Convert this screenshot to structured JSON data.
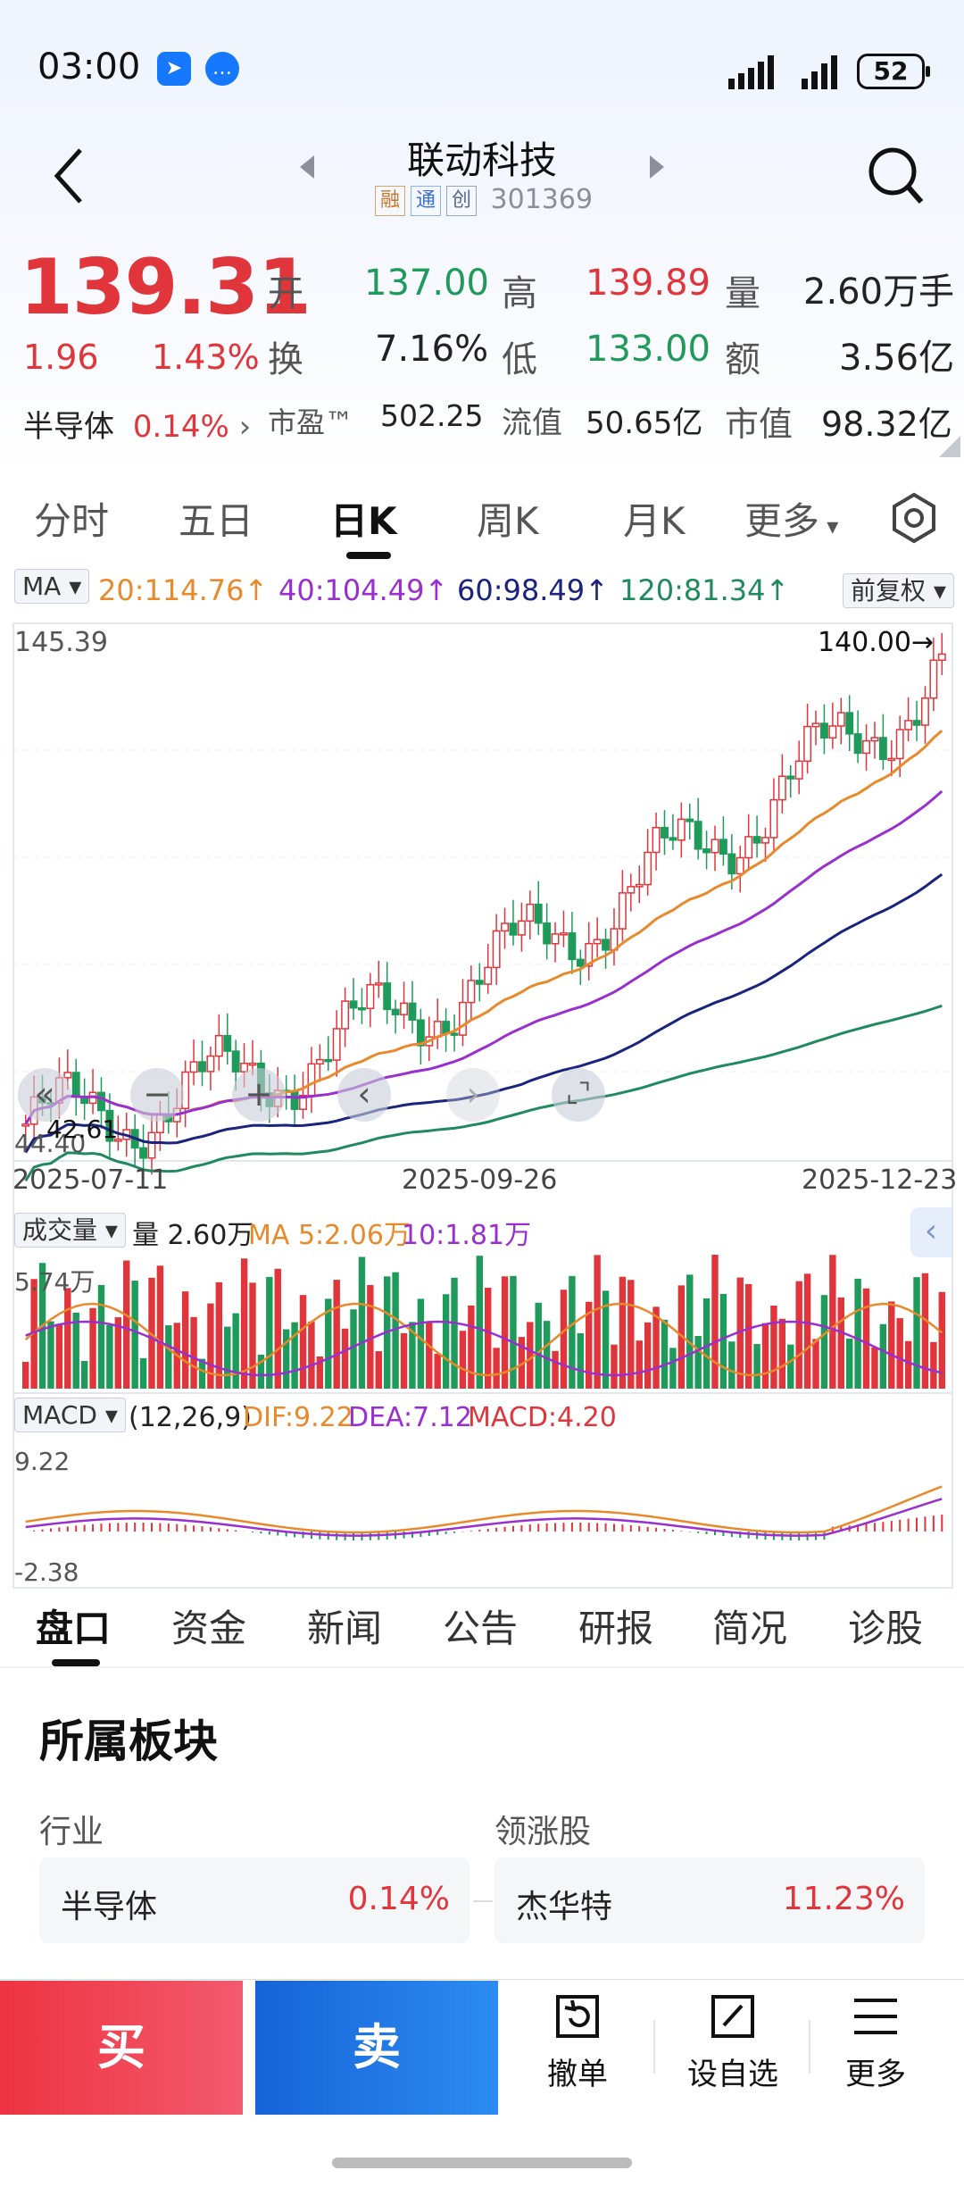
{
  "status": {
    "time": "03:00",
    "battery": "52"
  },
  "header": {
    "title": "联动科技",
    "tags": [
      "融",
      "通",
      "创"
    ],
    "code": "301369"
  },
  "quote": {
    "price": "139.31",
    "change": "1.96",
    "change_pct": "1.43%",
    "sector_name": "半导体",
    "sector_pct": "0.14%",
    "open_label": "开",
    "open": "137.00",
    "high_label": "高",
    "high": "139.89",
    "vol_label": "量",
    "vol": "2.60万手",
    "turnover_label": "换",
    "turnover": "7.16%",
    "low_label": "低",
    "low": "133.00",
    "amount_label": "额",
    "amount": "3.56亿",
    "pe_label": "市盈™",
    "pe": "502.25",
    "float_label": "流值",
    "float_cap": "50.65亿",
    "mcap_label": "市值",
    "mcap": "98.32亿"
  },
  "period_tabs": [
    "分时",
    "五日",
    "日K",
    "周K",
    "月K",
    "更多"
  ],
  "chart": {
    "ma_label": "MA",
    "ma20": "20:114.76↑",
    "ma40": "40:104.49↑",
    "ma60": "60:98.49↑",
    "ma120": "120:81.34↑",
    "adjust": "前复权",
    "y_top": "145.39",
    "y_low_1": "44.40",
    "y_low_2": "42.61",
    "max_marker": "140.00→",
    "dates": [
      "2025-07-11",
      "2025-09-26",
      "2025-12-23"
    ],
    "vol_label": "成交量",
    "vol_now": "量 2.60万",
    "vol_ma5": "MA 5:2.06万",
    "vol_ma10": "10:1.81万",
    "vol_top": "5.74万",
    "macd_label": "MACD",
    "macd_params": "(12,26,9)",
    "dif": "DIF:9.22",
    "dea": "DEA:7.12",
    "macd": "MACD:4.20",
    "macd_top": "9.22",
    "macd_bottom": "-2.38",
    "colors": {
      "up": "#e0353b",
      "down": "#1e9a5a",
      "ma20": "#e8892c",
      "ma40": "#9a2fd0",
      "ma60": "#1a237e",
      "ma120": "#1e8a5e"
    }
  },
  "info_tabs": [
    "盘口",
    "资金",
    "新闻",
    "公告",
    "研报",
    "简况",
    "诊股"
  ],
  "sector_section": {
    "title": "所属板块",
    "industry_label": "行业",
    "leader_label": "领涨股",
    "industry_name": "半导体",
    "industry_pct": "0.14%",
    "leader_name": "杰华特",
    "leader_pct": "11.23%"
  },
  "bottom": {
    "buy": "买",
    "sell": "卖",
    "cancel": "撤单",
    "watch": "设自选",
    "more": "更多"
  }
}
